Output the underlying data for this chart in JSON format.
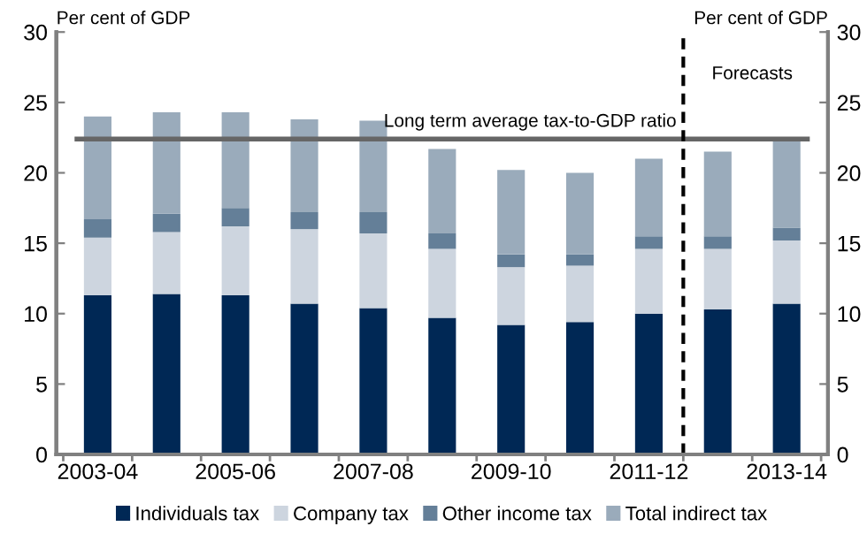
{
  "chart_data": {
    "type": "bar",
    "stacked": true,
    "categories": [
      "2003-04",
      null,
      "2005-06",
      null,
      "2007-08",
      null,
      "2009-10",
      null,
      "2011-12",
      null,
      "2013-14"
    ],
    "series": [
      {
        "name": "Individuals tax",
        "color": "#002855",
        "values": [
          11.3,
          11.4,
          11.3,
          10.7,
          10.4,
          9.7,
          9.2,
          9.4,
          10.0,
          10.3,
          10.7
        ]
      },
      {
        "name": "Company tax",
        "color": "#cdd5df",
        "values": [
          4.1,
          4.4,
          4.9,
          5.3,
          5.3,
          4.9,
          4.1,
          4.0,
          4.6,
          4.3,
          4.5
        ]
      },
      {
        "name": "Other income tax",
        "color": "#647f98",
        "values": [
          1.3,
          1.3,
          1.3,
          1.2,
          1.5,
          1.1,
          0.9,
          0.8,
          0.9,
          0.9,
          0.9
        ]
      },
      {
        "name": "Total indirect tax",
        "color": "#9aabbb",
        "values": [
          7.3,
          7.2,
          6.8,
          6.6,
          6.5,
          6.0,
          6.0,
          5.8,
          5.5,
          6.0,
          6.2
        ]
      }
    ],
    "ylabel": "Per cent of GDP",
    "y2label": "Per cent of GDP",
    "ylim": [
      0,
      30
    ],
    "yticks": [
      0,
      5,
      10,
      15,
      20,
      25,
      30
    ],
    "y2lim": [
      0,
      30
    ],
    "y2ticks": [
      0,
      5,
      10,
      15,
      20,
      25,
      30
    ],
    "ref_lines": [
      {
        "axis": "y",
        "value": 22.4,
        "label": "Long term average tax-to-GDP ratio",
        "color": "#666666",
        "line_style": "solid"
      }
    ],
    "annotations": [
      "Forecasts"
    ],
    "legend": "bottom",
    "grid": false
  }
}
